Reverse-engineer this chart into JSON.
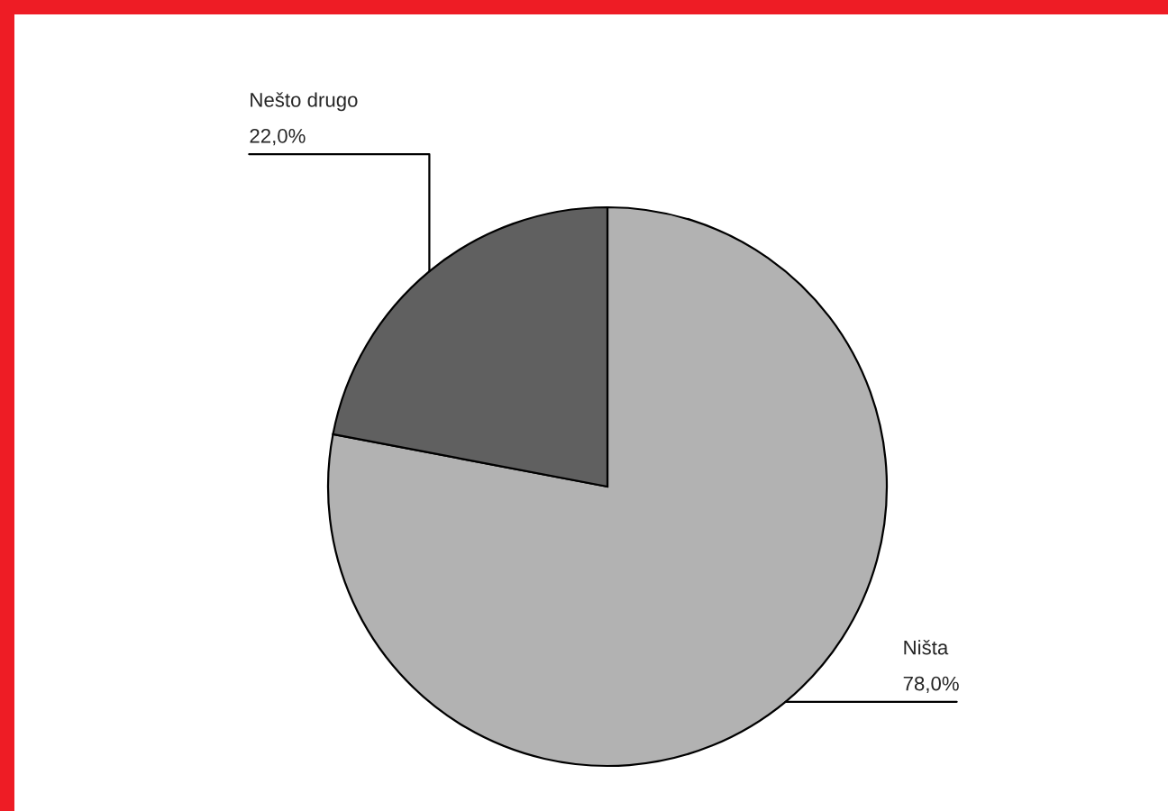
{
  "chart_data": {
    "type": "pie",
    "categories": [
      "Ništa",
      "Nešto drugo"
    ],
    "values": [
      78,
      22
    ],
    "colors": [
      "#b2b2b2",
      "#606060"
    ],
    "value_labels": [
      "78,0%",
      "22,0%"
    ]
  }
}
